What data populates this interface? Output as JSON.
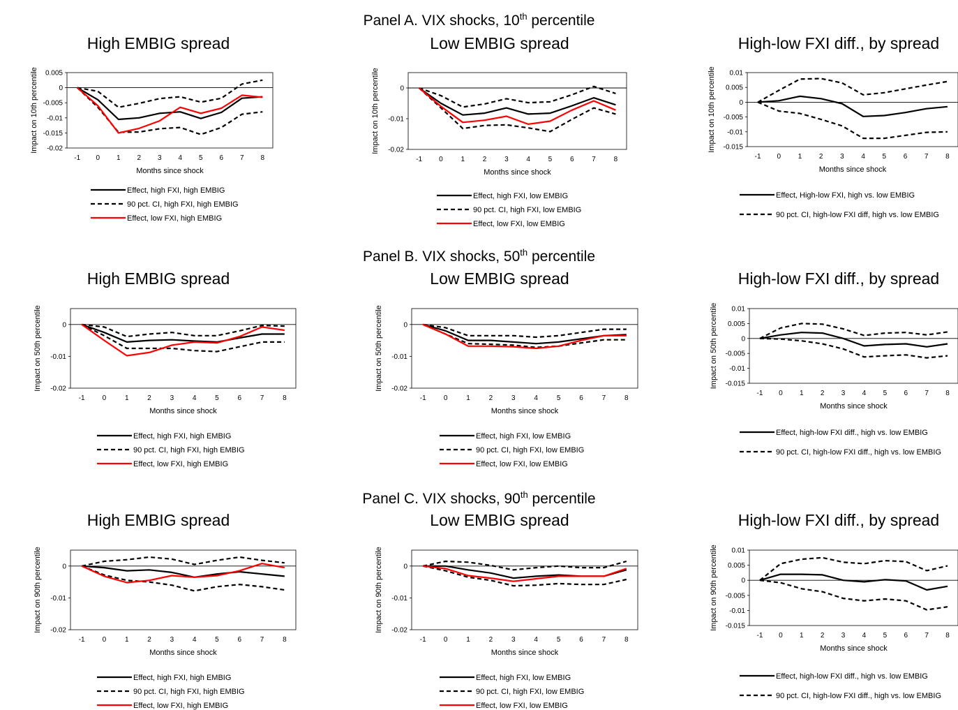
{
  "panels": [
    {
      "title": "Panel A. VIX shocks, 10",
      "sup": "th",
      "title_tail": " percentile"
    },
    {
      "title": "Panel B. VIX shocks, 50",
      "sup": "th",
      "title_tail": " percentile"
    },
    {
      "title": "Panel C. VIX shocks, 90",
      "sup": "th",
      "title_tail": " percentile"
    }
  ],
  "colors": {
    "effect_high": "#000000",
    "ci": "#000000",
    "effect_low": "#ff0000"
  },
  "chart_data": [
    {
      "type": "line",
      "title": "High EMBIG spread",
      "xlabel": "Months since shock",
      "ylabel": "Impact on 10th percentile",
      "x": [
        -1,
        0,
        1,
        2,
        3,
        4,
        5,
        6,
        7,
        8
      ],
      "ylim": [
        -0.02,
        0.005
      ],
      "yticks": [
        -0.02,
        -0.015,
        -0.01,
        -0.005,
        0,
        0.005
      ],
      "ytick_labels": [
        "-0.02",
        "-0.015",
        "-0.01",
        "-0.005",
        "0",
        "0.005"
      ],
      "series": [
        {
          "name": "Effect, high FXI, high EMBIG",
          "style": "solid-black",
          "values": [
            0,
            -0.004,
            -0.0105,
            -0.01,
            -0.0085,
            -0.008,
            -0.0102,
            -0.0082,
            -0.0035,
            -0.003
          ]
        },
        {
          "name": "90 pct. CI, high FXI, high EMBIG",
          "style": "dashed",
          "values": [
            0,
            -0.0012,
            -0.0065,
            -0.0052,
            -0.0036,
            -0.003,
            -0.0048,
            -0.0035,
            0.0012,
            0.0025
          ]
        },
        {
          "name": "",
          "style": "dashed",
          "values": [
            0,
            -0.0065,
            -0.0148,
            -0.0147,
            -0.0136,
            -0.0132,
            -0.0155,
            -0.0132,
            -0.0088,
            -0.008
          ]
        },
        {
          "name": "Effect, low FXI, high EMBIG",
          "style": "solid-red",
          "values": [
            0,
            -0.006,
            -0.015,
            -0.0135,
            -0.011,
            -0.0065,
            -0.0085,
            -0.0068,
            -0.0025,
            -0.0032
          ]
        }
      ]
    },
    {
      "type": "line",
      "title": "Low EMBIG spread",
      "xlabel": "Months since shock",
      "ylabel": "Impact on 10th percentile",
      "x": [
        -1,
        0,
        1,
        2,
        3,
        4,
        5,
        6,
        7,
        8
      ],
      "ylim": [
        -0.02,
        0.005
      ],
      "yticks": [
        -0.02,
        -0.01,
        0
      ],
      "ytick_labels": [
        "-0.02",
        "-0.01",
        "0"
      ],
      "series": [
        {
          "name": "Effect, high FXI, low EMBIG",
          "style": "solid-black",
          "values": [
            0,
            -0.005,
            -0.0088,
            -0.0082,
            -0.0065,
            -0.0085,
            -0.0082,
            -0.0058,
            -0.0032,
            -0.0055
          ]
        },
        {
          "name": "90 pct. CI, high FXI, low EMBIG",
          "style": "dashed",
          "values": [
            0,
            -0.0025,
            -0.0062,
            -0.0052,
            -0.0035,
            -0.0048,
            -0.0045,
            -0.0022,
            0.0005,
            -0.0018
          ]
        },
        {
          "name": "",
          "style": "dashed",
          "values": [
            0,
            -0.0065,
            -0.0132,
            -0.0122,
            -0.012,
            -0.013,
            -0.0142,
            -0.0102,
            -0.0065,
            -0.0085
          ]
        },
        {
          "name": "Effect, low FXI, low EMBIG",
          "style": "solid-red",
          "values": [
            0,
            -0.006,
            -0.0112,
            -0.0105,
            -0.0092,
            -0.0118,
            -0.0108,
            -0.0072,
            -0.0042,
            -0.0072
          ]
        }
      ]
    },
    {
      "type": "line",
      "title": "High-low FXI diff., by spread",
      "xlabel": "Months since shock",
      "ylabel": "Impact on 10th percentile",
      "x": [
        -1,
        0,
        1,
        2,
        3,
        4,
        5,
        6,
        7,
        8
      ],
      "ylim": [
        -0.015,
        0.01
      ],
      "yticks": [
        -0.015,
        -0.01,
        -0.005,
        0,
        0.005,
        0.01
      ],
      "ytick_labels": [
        "-0.015",
        "-0.01",
        "-0.005",
        "0",
        "0.005",
        "0.01"
      ],
      "series": [
        {
          "name": "Effect, High-low FXI, high vs. low EMBIG",
          "style": "solid-black",
          "values": [
            0,
            0.0005,
            0.002,
            0.0012,
            -0.0005,
            -0.0048,
            -0.0045,
            -0.0035,
            -0.0022,
            -0.0015
          ]
        },
        {
          "name": "90 pct. CI, high-low FXI diff, high vs. low EMBIG",
          "style": "dashed",
          "values": [
            0,
            0.004,
            0.0078,
            0.008,
            0.0065,
            0.0025,
            0.0032,
            0.0045,
            0.0058,
            0.007
          ]
        },
        {
          "name": "",
          "style": "dashed",
          "values": [
            0,
            -0.003,
            -0.0038,
            -0.0058,
            -0.008,
            -0.0122,
            -0.0122,
            -0.0112,
            -0.0102,
            -0.01
          ]
        }
      ]
    },
    {
      "type": "line",
      "title": "High EMBIG spread",
      "xlabel": "Months since shock",
      "ylabel": "Impact on 50th percentile",
      "x": [
        -1,
        0,
        1,
        2,
        3,
        4,
        5,
        6,
        7,
        8
      ],
      "ylim": [
        -0.02,
        0.005
      ],
      "yticks": [
        -0.02,
        -0.01,
        0
      ],
      "ytick_labels": [
        "-0.02",
        "-0.01",
        "0"
      ],
      "series": [
        {
          "name": "Effect, high FXI, high EMBIG",
          "style": "solid-black",
          "values": [
            0,
            -0.0025,
            -0.0055,
            -0.005,
            -0.0048,
            -0.0052,
            -0.0055,
            -0.0042,
            -0.003,
            -0.003
          ]
        },
        {
          "name": "90 pct. CI, high FXI, high EMBIG",
          "style": "dashed",
          "values": [
            0,
            -0.0008,
            -0.0038,
            -0.003,
            -0.0025,
            -0.0035,
            -0.0035,
            -0.002,
            -0.0003,
            -0.0005
          ]
        },
        {
          "name": "",
          "style": "dashed",
          "values": [
            0,
            -0.0035,
            -0.0075,
            -0.0075,
            -0.0075,
            -0.0082,
            -0.0085,
            -0.007,
            -0.0055,
            -0.0055
          ]
        },
        {
          "name": "Effect, low FXI, high EMBIG",
          "style": "solid-red",
          "values": [
            0,
            -0.005,
            -0.0098,
            -0.0088,
            -0.0065,
            -0.0055,
            -0.0058,
            -0.0038,
            -0.0008,
            -0.0018
          ]
        }
      ]
    },
    {
      "type": "line",
      "title": "Low EMBIG spread",
      "xlabel": "Months since shock",
      "ylabel": "Impact on 50th percentile",
      "x": [
        -1,
        0,
        1,
        2,
        3,
        4,
        5,
        6,
        7,
        8
      ],
      "ylim": [
        -0.02,
        0.005
      ],
      "yticks": [
        -0.02,
        -0.01,
        0
      ],
      "ytick_labels": [
        "-0.02",
        "-0.01",
        "0"
      ],
      "series": [
        {
          "name": "Effect, high FXI, low EMBIG",
          "style": "solid-black",
          "values": [
            0,
            -0.002,
            -0.005,
            -0.005,
            -0.0055,
            -0.006,
            -0.0055,
            -0.0045,
            -0.0035,
            -0.0032
          ]
        },
        {
          "name": "90 pct. CI, high FXI, low EMBIG",
          "style": "dashed",
          "values": [
            0,
            -0.001,
            -0.0035,
            -0.0035,
            -0.0035,
            -0.004,
            -0.0035,
            -0.0025,
            -0.0015,
            -0.0015
          ]
        },
        {
          "name": "",
          "style": "dashed",
          "values": [
            0,
            -0.003,
            -0.006,
            -0.0062,
            -0.0065,
            -0.0072,
            -0.0068,
            -0.0058,
            -0.0048,
            -0.0048
          ]
        },
        {
          "name": "Effect, low FXI, low EMBIG",
          "style": "solid-red",
          "values": [
            0,
            -0.003,
            -0.0068,
            -0.0068,
            -0.007,
            -0.0075,
            -0.0068,
            -0.005,
            -0.0035,
            -0.0035
          ]
        }
      ]
    },
    {
      "type": "line",
      "title": "High-low FXI diff., by spread",
      "xlabel": "Months since shock",
      "ylabel": "Impact on 50th percentile",
      "x": [
        -1,
        0,
        1,
        2,
        3,
        4,
        5,
        6,
        7,
        8
      ],
      "ylim": [
        -0.015,
        0.01
      ],
      "yticks": [
        -0.015,
        -0.01,
        -0.005,
        0,
        0.005,
        0.01
      ],
      "ytick_labels": [
        "-0.015",
        "-0.01",
        "-0.005",
        "0",
        "0.005",
        "0.01"
      ],
      "series": [
        {
          "name": "Effect, high-low FXI diff., high vs. low EMBIG",
          "style": "solid-black",
          "values": [
            0,
            0.0012,
            0.002,
            0.0018,
            0,
            -0.0025,
            -0.002,
            -0.0018,
            -0.0028,
            -0.0018
          ]
        },
        {
          "name": "90 pct. CI, high-low FXI diff., high vs. low EMBIG",
          "style": "dashed",
          "values": [
            0,
            0.0035,
            0.005,
            0.0048,
            0.0032,
            0.001,
            0.0018,
            0.002,
            0.0012,
            0.0022
          ]
        },
        {
          "name": "",
          "style": "dashed",
          "values": [
            0,
            -0.0002,
            -0.0008,
            -0.0018,
            -0.0035,
            -0.0062,
            -0.0058,
            -0.0055,
            -0.0065,
            -0.0058
          ]
        }
      ]
    },
    {
      "type": "line",
      "title": "High EMBIG spread",
      "xlabel": "Months since shock",
      "ylabel": "Impact on 90th percentile",
      "x": [
        -1,
        0,
        1,
        2,
        3,
        4,
        5,
        6,
        7,
        8
      ],
      "ylim": [
        -0.02,
        0.005
      ],
      "yticks": [
        -0.02,
        -0.01,
        0
      ],
      "ytick_labels": [
        "-0.02",
        "-0.01",
        "0"
      ],
      "series": [
        {
          "name": "Effect, high FXI, high EMBIG",
          "style": "solid-black",
          "values": [
            0,
            -0.0005,
            -0.0015,
            -0.0012,
            -0.002,
            -0.0035,
            -0.0025,
            -0.0018,
            -0.0025,
            -0.0032
          ]
        },
        {
          "name": "90 pct. CI, high FXI, high EMBIG",
          "style": "dashed",
          "values": [
            0,
            0.0015,
            0.002,
            0.0028,
            0.0022,
            0.0005,
            0.0018,
            0.0028,
            0.0018,
            0.001
          ]
        },
        {
          "name": "",
          "style": "dashed",
          "values": [
            0,
            -0.0028,
            -0.0045,
            -0.005,
            -0.006,
            -0.0078,
            -0.0065,
            -0.0058,
            -0.0065,
            -0.0075
          ]
        },
        {
          "name": "Effect, low FXI, high EMBIG",
          "style": "solid-red",
          "values": [
            0,
            -0.0032,
            -0.0052,
            -0.0045,
            -0.003,
            -0.0035,
            -0.003,
            -0.0015,
            0.0008,
            -0.0005
          ]
        }
      ]
    },
    {
      "type": "line",
      "title": "Low EMBIG spread",
      "xlabel": "Months since shock",
      "ylabel": "Impact on 90th percentile",
      "x": [
        -1,
        0,
        1,
        2,
        3,
        4,
        5,
        6,
        7,
        8
      ],
      "ylim": [
        -0.02,
        0.005
      ],
      "yticks": [
        -0.02,
        -0.01,
        0
      ],
      "ytick_labels": [
        "-0.02",
        "-0.01",
        "0"
      ],
      "series": [
        {
          "name": "Effect, high FXI, low EMBIG",
          "style": "solid-black",
          "values": [
            0,
            0,
            -0.0012,
            -0.0022,
            -0.0038,
            -0.0032,
            -0.0028,
            -0.0032,
            -0.0032,
            -0.0012
          ]
        },
        {
          "name": "90 pct. CI, high FXI, low EMBIG",
          "style": "dashed",
          "values": [
            0,
            0.0015,
            0.0012,
            0.0002,
            -0.0012,
            -0.0005,
            0,
            -0.0005,
            -0.0005,
            0.0015
          ]
        },
        {
          "name": "",
          "style": "dashed",
          "values": [
            0,
            -0.0015,
            -0.0035,
            -0.0045,
            -0.0062,
            -0.006,
            -0.0055,
            -0.0058,
            -0.0058,
            -0.0042
          ]
        },
        {
          "name": "Effect, low FXI, low EMBIG",
          "style": "solid-red",
          "values": [
            0,
            -0.0008,
            -0.003,
            -0.0038,
            -0.0048,
            -0.004,
            -0.0032,
            -0.0032,
            -0.0032,
            -0.0008
          ]
        }
      ]
    },
    {
      "type": "line",
      "title": "High-low FXI diff., by spread",
      "xlabel": "Months since shock",
      "ylabel": "Impact on 90th percentile",
      "x": [
        -1,
        0,
        1,
        2,
        3,
        4,
        5,
        6,
        7,
        8
      ],
      "ylim": [
        -0.015,
        0.01
      ],
      "yticks": [
        -0.015,
        -0.01,
        -0.005,
        0,
        0.005,
        0.01
      ],
      "ytick_labels": [
        "-0.015",
        "-0.01",
        "-0.005",
        "0",
        "0.005",
        "0.01"
      ],
      "series": [
        {
          "name": "Effect, high-low FXI diff., high vs. low EMBIG",
          "style": "solid-black",
          "values": [
            0,
            0.002,
            0.002,
            0.0018,
            0,
            -0.0005,
            0.0002,
            -0.0002,
            -0.0032,
            -0.002
          ]
        },
        {
          "name": "90 pct. CI, high-low FXI diff., high vs. low EMBIG",
          "style": "dashed",
          "values": [
            0,
            0.0055,
            0.007,
            0.0075,
            0.006,
            0.0055,
            0.0065,
            0.0062,
            0.0032,
            0.0048
          ]
        },
        {
          "name": "",
          "style": "dashed",
          "values": [
            0,
            -0.0008,
            -0.0028,
            -0.0038,
            -0.006,
            -0.0068,
            -0.0062,
            -0.0068,
            -0.0098,
            -0.0088
          ]
        }
      ]
    }
  ]
}
